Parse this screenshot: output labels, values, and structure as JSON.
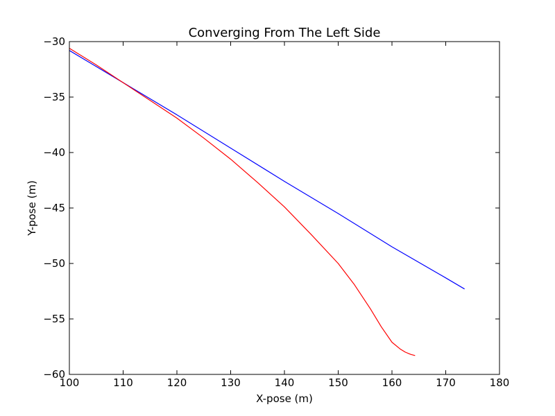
{
  "chart_data": {
    "type": "line",
    "title": "Converging From The Left Side",
    "xlabel": "X-pose (m)",
    "ylabel": "Y-pose (m)",
    "xlim": [
      100,
      180
    ],
    "ylim": [
      -60,
      -30
    ],
    "xticks": [
      100,
      110,
      120,
      130,
      140,
      150,
      160,
      170,
      180
    ],
    "yticks": [
      -30,
      -35,
      -40,
      -45,
      -50,
      -55,
      -60
    ],
    "xtick_labels": [
      "100",
      "110",
      "120",
      "130",
      "140",
      "150",
      "160",
      "170",
      "180"
    ],
    "ytick_labels": [
      "−30",
      "−35",
      "−40",
      "−45",
      "−50",
      "−55",
      "−60"
    ],
    "grid": false,
    "series": [
      {
        "color": "#0000ff",
        "x": [
          100.0,
          110.0,
          120.0,
          130.0,
          140.0,
          150.0,
          160.0,
          170.0,
          173.5
        ],
        "y": [
          -30.8,
          -33.7,
          -36.6,
          -39.6,
          -42.6,
          -45.5,
          -48.5,
          -51.3,
          -52.3
        ]
      },
      {
        "color": "#ff0000",
        "x": [
          100.0,
          105.0,
          110.0,
          115.0,
          120.0,
          125.0,
          130.0,
          135.0,
          140.0,
          145.0,
          150.0,
          153.0,
          156.0,
          158.0,
          160.0,
          161.5,
          162.5,
          163.5,
          164.3
        ],
        "y": [
          -30.6,
          -32.1,
          -33.7,
          -35.3,
          -36.9,
          -38.7,
          -40.6,
          -42.7,
          -44.9,
          -47.4,
          -50.0,
          -51.9,
          -54.1,
          -55.7,
          -57.1,
          -57.7,
          -58.0,
          -58.2,
          -58.3
        ]
      }
    ]
  }
}
